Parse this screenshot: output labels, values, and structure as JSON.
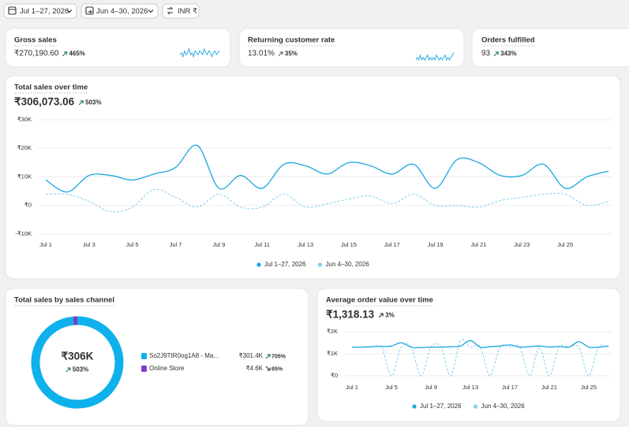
{
  "toolbar": {
    "date_range": "Jul 1–27, 2026",
    "comparison": "Jun 4–30, 2026",
    "currency": "INR ₹"
  },
  "metrics": [
    {
      "label": "Gross sales",
      "value": "₹270,190.60",
      "change": "465%",
      "change_color": "#0c7a43",
      "sparkline": [
        4,
        5,
        3,
        6,
        4,
        5,
        7,
        4,
        5,
        3,
        6,
        5,
        4,
        6,
        5,
        4,
        7,
        5,
        4,
        6,
        5,
        3,
        5,
        6,
        4,
        5,
        6
      ]
    },
    {
      "label": "Returning customer rate",
      "value": "13.01%",
      "change": "35%",
      "change_color": "#616161",
      "sparkline": [
        3,
        4,
        3,
        5,
        3,
        4,
        3,
        4,
        5,
        3,
        4,
        3,
        4,
        3,
        5,
        4,
        3,
        4,
        3,
        4,
        5,
        3,
        4,
        3,
        4,
        5,
        6
      ]
    },
    {
      "label": "Orders fulfilled",
      "value": "93",
      "change": "343%",
      "change_color": "#0c7a43"
    }
  ],
  "chart_data": [
    {
      "type": "line",
      "title": "Total sales over time",
      "total": "₹306,073.06",
      "change": "503%",
      "change_color": "#0c7a43",
      "categories": [
        "Jul 1",
        null,
        "Jul 3",
        null,
        "Jul 5",
        null,
        "Jul 7",
        null,
        "Jul 9",
        null,
        "Jul 11",
        null,
        "Jul 13",
        null,
        "Jul 15",
        null,
        "Jul 17",
        null,
        "Jul 19",
        null,
        "Jul 21",
        null,
        "Jul 23",
        null,
        "Jul 25",
        null,
        null
      ],
      "series": [
        {
          "name": "Jul 1–27, 2026",
          "color": "#1aa6e0",
          "dashed": false,
          "values": [
            8900,
            4700,
            10500,
            10500,
            8900,
            11000,
            13300,
            21000,
            6000,
            10500,
            6000,
            14400,
            13900,
            11000,
            15000,
            13900,
            11000,
            14400,
            6000,
            16000,
            15000,
            10500,
            10500,
            14400,
            6000,
            10000,
            12000
          ]
        },
        {
          "name": "Jun 4–30, 2026",
          "color": "#7fd0ef",
          "dashed": true,
          "values": [
            3900,
            3900,
            1400,
            -2200,
            -600,
            5600,
            2800,
            -600,
            3900,
            -600,
            -600,
            3900,
            -600,
            600,
            2200,
            3300,
            600,
            3900,
            0,
            0,
            -600,
            1700,
            2800,
            3900,
            3900,
            0,
            1400
          ]
        }
      ],
      "ylim": [
        -10000,
        30000
      ],
      "yticks": [
        {
          "value": 30000,
          "label": "₹30K"
        },
        {
          "value": 20000,
          "label": "₹20K"
        },
        {
          "value": 10000,
          "label": "₹10K"
        },
        {
          "value": 0,
          "label": "₹0"
        },
        {
          "value": -10000,
          "label": "-₹10K"
        }
      ],
      "grid": true
    },
    {
      "type": "pie",
      "title": "Total sales by sales channel",
      "center_label": "₹306K",
      "center_change": "503%",
      "center_change_color": "#0c7a43",
      "categories": [
        "So2J9TtR0og1A8 - Ma...",
        "Online Store"
      ],
      "values": [
        301400,
        4600
      ],
      "value_labels": [
        "₹301.4K",
        "₹4.6K"
      ],
      "colors": [
        "#0eb1ec",
        "#7b3fc7"
      ],
      "changes": [
        "705%",
        "65%"
      ],
      "trends": [
        "up",
        "down"
      ],
      "change_colors": [
        "#0c7a43",
        "#303030"
      ]
    },
    {
      "type": "line",
      "title": "Average order value over time",
      "total": "₹1,318.13",
      "change": "3%",
      "change_color": "#303030",
      "categories": [
        "Jul 1",
        null,
        null,
        null,
        "Jul 5",
        null,
        null,
        null,
        "Jul 9",
        null,
        null,
        null,
        "Jul 13",
        null,
        null,
        null,
        "Jul 17",
        null,
        null,
        null,
        "Jul 21",
        null,
        null,
        null,
        "Jul 25",
        null,
        null
      ],
      "series": [
        {
          "name": "Jul 1–27, 2026",
          "color": "#1aa6e0",
          "dashed": false,
          "values": [
            1300,
            1300,
            1320,
            1330,
            1350,
            1500,
            1300,
            1280,
            1300,
            1300,
            1320,
            1350,
            1600,
            1300,
            1320,
            1350,
            1400,
            1300,
            1320,
            1350,
            1300,
            1330,
            1300,
            1550,
            1300,
            1300,
            1350
          ]
        },
        {
          "name": "Jun 4–30, 2026",
          "color": "#7fd0ef",
          "dashed": true,
          "values": [
            1300,
            1300,
            1300,
            1300,
            0,
            1300,
            1300,
            0,
            1300,
            1300,
            0,
            1600,
            1300,
            1300,
            0,
            1300,
            1300,
            1300,
            0,
            1300,
            0,
            1300,
            1300,
            1300,
            0,
            1300,
            1300
          ]
        }
      ],
      "ylim": [
        0,
        2000
      ],
      "yticks": [
        {
          "value": 2000,
          "label": "₹2K"
        },
        {
          "value": 1000,
          "label": "₹1K"
        },
        {
          "value": 0,
          "label": "₹0"
        }
      ],
      "grid": true
    }
  ]
}
